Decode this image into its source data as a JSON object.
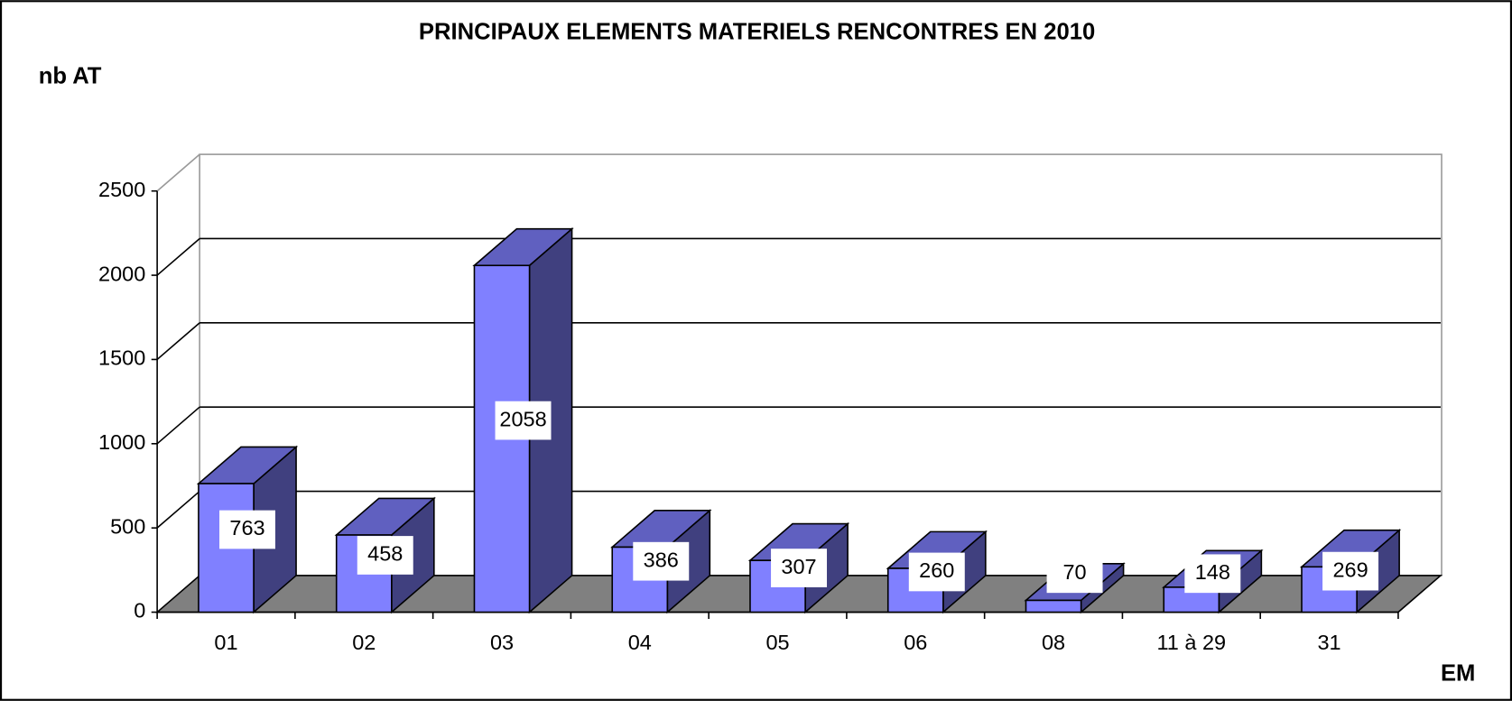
{
  "chart_data": {
    "type": "bar3d",
    "title": "PRINCIPAUX ELEMENTS MATERIELS RENCONTRES EN 2010",
    "y_label": "nb AT",
    "x_label": "EM",
    "categories": [
      "01",
      "02",
      "03",
      "04",
      "05",
      "06",
      "08",
      "11 à 29",
      "31"
    ],
    "values": [
      763,
      458,
      2058,
      386,
      307,
      260,
      70,
      148,
      269
    ],
    "color": "#8080ff",
    "ylim": [
      0,
      2500
    ],
    "yticks": [
      0,
      500,
      1000,
      1500,
      2000,
      2500
    ],
    "grid": true
  }
}
